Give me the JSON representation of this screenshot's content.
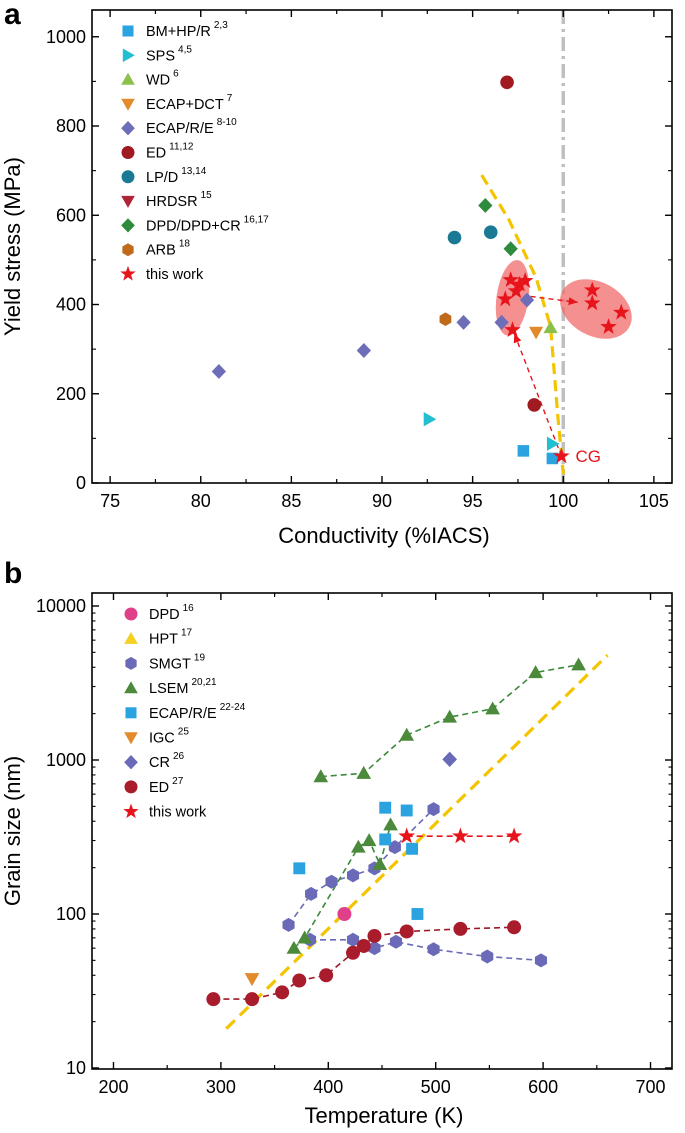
{
  "chart_data": [
    {
      "panel": "a",
      "type": "scatter",
      "xlabel": "Conductivity (%IACS)",
      "ylabel": "Yield stress (MPa)",
      "xlim": [
        74,
        106
      ],
      "ylim": [
        0,
        1060
      ],
      "xticks": [
        75,
        80,
        85,
        90,
        95,
        100,
        105
      ],
      "yticks": [
        0,
        200,
        400,
        600,
        800,
        1000
      ],
      "colors": {
        "yellow_line": "#f5c400",
        "gray_line": "#bfbfbf",
        "red_arrow": "#e8141b",
        "red_ellipse": "#f26b6b"
      },
      "annotation": "CG",
      "series": [
        {
          "name": "BM+HP/R",
          "ref": "2,3",
          "marker": "square",
          "color": "#2aa3e0",
          "points": [
            [
              97.8,
              72
            ],
            [
              99.4,
              55
            ]
          ]
        },
        {
          "name": "SPS",
          "ref": "4,5",
          "marker": "triangle-right",
          "color": "#22bfd0",
          "points": [
            [
              92.6,
              143
            ],
            [
              99.4,
              88
            ]
          ]
        },
        {
          "name": "WD",
          "ref": "6",
          "marker": "triangle-up",
          "color": "#8cc04a",
          "points": [
            [
              99.3,
              348
            ]
          ]
        },
        {
          "name": "ECAP+DCT",
          "ref": "7",
          "marker": "triangle-down",
          "color": "#e38a2c",
          "points": [
            [
              98.5,
              338
            ]
          ]
        },
        {
          "name": "ECAP/R/E",
          "ref": "8-10",
          "marker": "diamond",
          "color": "#6e6eb8",
          "points": [
            [
              81.0,
              250
            ],
            [
              89.0,
              297
            ],
            [
              94.5,
              360
            ],
            [
              96.6,
              360
            ],
            [
              98.0,
              410
            ]
          ]
        },
        {
          "name": "ED",
          "ref": "11,12",
          "marker": "circle",
          "color": "#a01a22",
          "points": [
            [
              96.9,
              898
            ],
            [
              98.4,
              175
            ]
          ]
        },
        {
          "name": "LP/D",
          "ref": "13,14",
          "marker": "circle",
          "color": "#1a7a96",
          "points": [
            [
              94.0,
              550
            ],
            [
              96.0,
              562
            ]
          ]
        },
        {
          "name": "HRDSR",
          "ref": "15",
          "marker": "triangle-down",
          "color": "#b0243a",
          "points": []
        },
        {
          "name": "DPD/DPD+CR",
          "ref": "16,17",
          "marker": "diamond",
          "color": "#2e8b3e",
          "points": [
            [
              95.7,
              622
            ],
            [
              97.1,
              525
            ]
          ]
        },
        {
          "name": "ARB",
          "ref": "18",
          "marker": "hexagon",
          "color": "#c06a1c",
          "points": [
            [
              93.5,
              367
            ]
          ]
        },
        {
          "name": "this work",
          "ref": "",
          "marker": "star",
          "color": "#e8141b",
          "points": [
            [
              96.8,
              412
            ],
            [
              97.1,
              455
            ],
            [
              97.4,
              430
            ],
            [
              97.6,
              445
            ],
            [
              97.9,
              453
            ],
            [
              97.2,
              343
            ],
            [
              99.9,
              60
            ]
          ]
        }
      ],
      "ghost_points": [
        [
          101.6,
          432
        ],
        [
          101.6,
          403
        ],
        [
          102.5,
          350
        ],
        [
          103.2,
          382
        ]
      ],
      "ellipse_centers": [
        [
          97.2,
          415
        ],
        [
          101.8,
          390
        ]
      ],
      "trend_line": [
        [
          95.5,
          690
        ],
        [
          97.0,
          590
        ],
        [
          98.5,
          460
        ],
        [
          99.3,
          350
        ],
        [
          99.7,
          150
        ],
        [
          100.0,
          20
        ]
      ],
      "vline_x": 100
    },
    {
      "panel": "b",
      "type": "scatter",
      "xlabel": "Temperature (K)",
      "ylabel": "Grain size (nm)",
      "xlim": [
        180,
        720
      ],
      "ylim_log": [
        10,
        10000
      ],
      "xticks": [
        200,
        300,
        400,
        500,
        600,
        700
      ],
      "yticks": [
        10,
        100,
        1000,
        10000
      ],
      "colors": {
        "yellow_line": "#f5c400"
      },
      "series": [
        {
          "name": "DPD",
          "ref": "16",
          "marker": "circle",
          "color": "#e0408a",
          "points": [
            [
              415,
              100
            ]
          ]
        },
        {
          "name": "HPT",
          "ref": "17",
          "marker": "triangle-up",
          "color": "#f5d020",
          "points": []
        },
        {
          "name": "SMGT",
          "ref": "19",
          "marker": "hexagon",
          "color": "#6a6ab8",
          "dash_color": "#6a6ab8",
          "points": [
            [
              363,
              85
            ],
            [
              384,
              135
            ],
            [
              403,
              162
            ],
            [
              423,
              178
            ],
            [
              443,
              198
            ],
            [
              462,
              272
            ],
            [
              498,
              480
            ],
            [
              383,
              68
            ],
            [
              423,
              68
            ],
            [
              443,
              60
            ],
            [
              463,
              66
            ],
            [
              498,
              59
            ],
            [
              548,
              53
            ],
            [
              598,
              50
            ]
          ],
          "line_groups": [
            [
              0,
              7
            ],
            [
              7,
              14
            ]
          ]
        },
        {
          "name": "LSEM",
          "ref": "20,21",
          "marker": "triangle-up",
          "color": "#4a8a3a",
          "dash_color": "#3a8a3a",
          "points": [
            [
              393,
              780
            ],
            [
              433,
              820
            ],
            [
              473,
              1450
            ],
            [
              513,
              1900
            ],
            [
              553,
              2150
            ],
            [
              593,
              3700
            ],
            [
              633,
              4150
            ],
            [
              368,
              60
            ],
            [
              378,
              70
            ],
            [
              428,
              272
            ],
            [
              438,
              300
            ],
            [
              448,
              210
            ],
            [
              458,
              380
            ]
          ],
          "line_groups": [
            [
              0,
              7
            ],
            [
              7,
              13
            ]
          ]
        },
        {
          "name": "ECAP/R/E",
          "ref": "22-24",
          "marker": "square",
          "color": "#2aa3e0",
          "points": [
            [
              373,
              198
            ],
            [
              453,
              490
            ],
            [
              473,
              470
            ],
            [
              453,
              305
            ],
            [
              478,
              265
            ],
            [
              483,
              100
            ]
          ]
        },
        {
          "name": "IGC",
          "ref": "25",
          "marker": "triangle-down",
          "color": "#e38a2c",
          "points": [
            [
              329,
              38
            ]
          ]
        },
        {
          "name": "CR",
          "ref": "26",
          "marker": "diamond",
          "color": "#6a6ab8",
          "points": [
            [
              513,
              1010
            ]
          ]
        },
        {
          "name": "ED",
          "ref": "27",
          "marker": "circle",
          "color": "#a81c2c",
          "dash_color": "#9c1a28",
          "points": [
            [
              293,
              28
            ],
            [
              329,
              28
            ],
            [
              357,
              31
            ],
            [
              373,
              37
            ],
            [
              398,
              40
            ],
            [
              423,
              56
            ],
            [
              433,
              62
            ],
            [
              443,
              72
            ],
            [
              473,
              77
            ],
            [
              523,
              80
            ],
            [
              573,
              82
            ]
          ],
          "line_groups": [
            [
              0,
              11
            ]
          ]
        },
        {
          "name": "this work",
          "ref": "",
          "marker": "star",
          "color": "#e8141b",
          "points": [
            [
              473,
              320
            ],
            [
              523,
              320
            ],
            [
              573,
              320
            ]
          ],
          "line_groups": [
            [
              0,
              3
            ]
          ]
        }
      ],
      "trend_line": [
        [
          305,
          18
        ],
        [
          660,
          4800
        ]
      ]
    }
  ]
}
